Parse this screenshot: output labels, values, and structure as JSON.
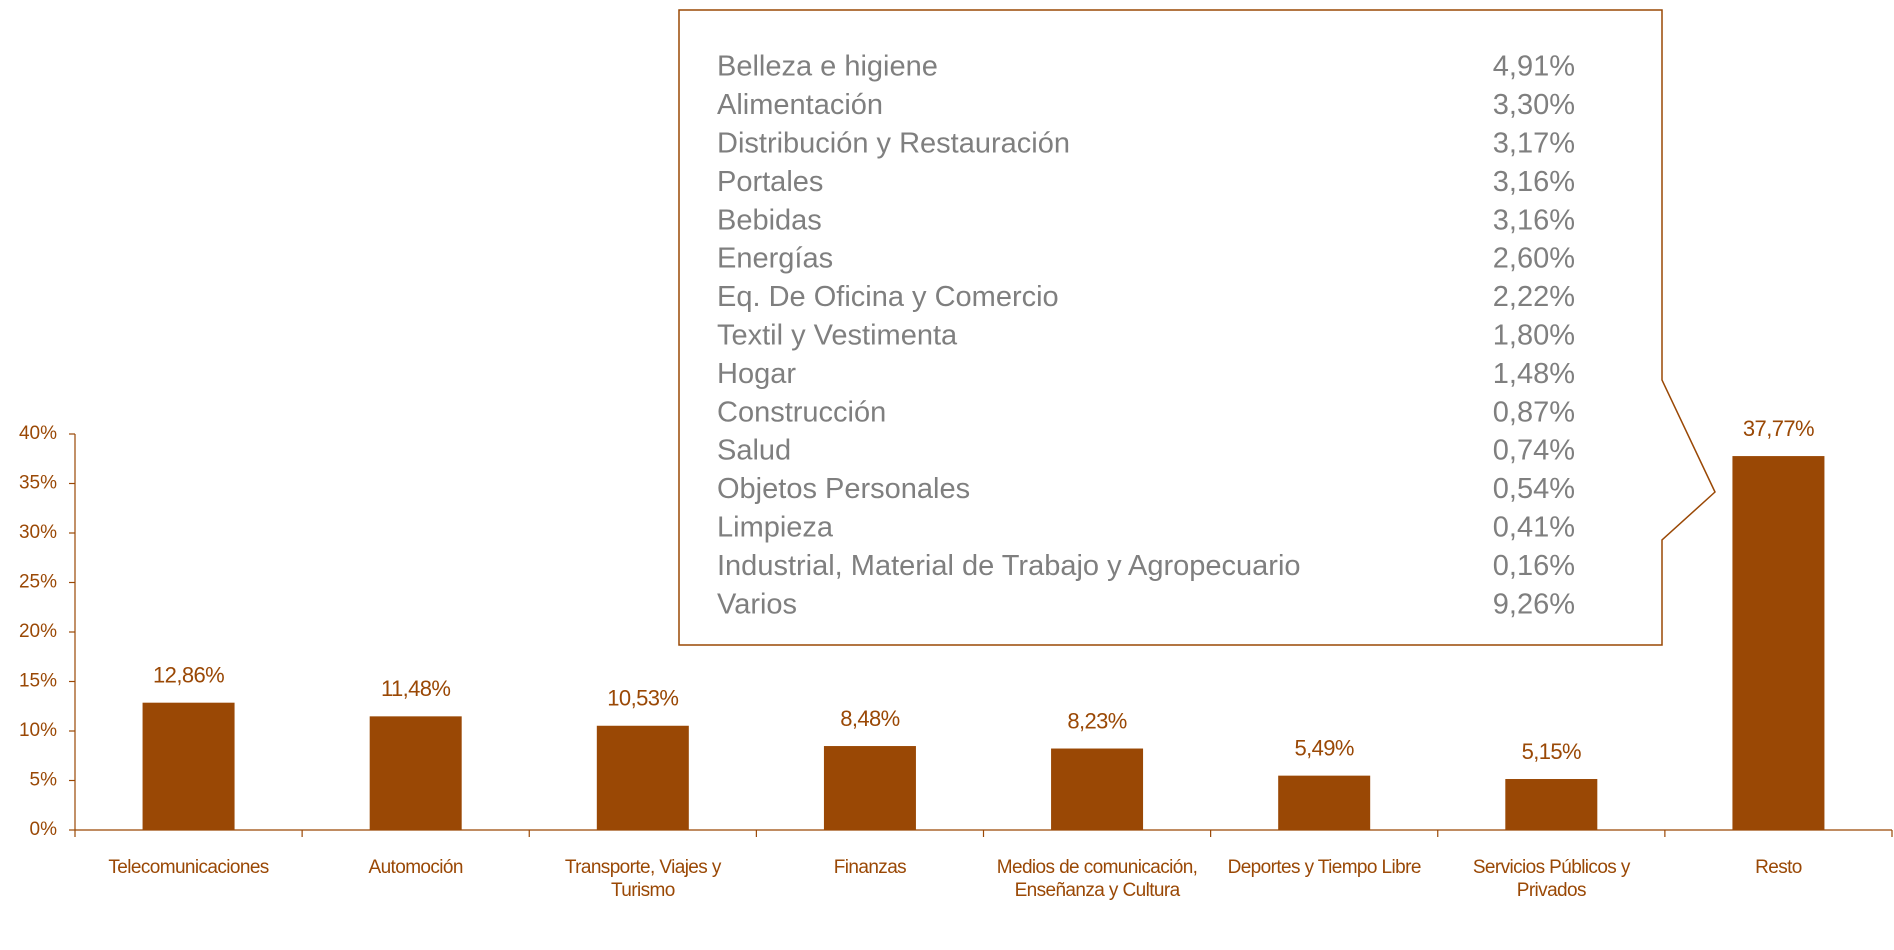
{
  "chart_data": {
    "type": "bar",
    "categories": [
      "Telecomunicaciones",
      "Automoción",
      "Transporte, Viajes y Turismo",
      "Finanzas",
      "Medios de comunicación, Enseñanza y Cultura",
      "Deportes y Tiempo Libre",
      "Servicios Públicos y Privados",
      "Resto"
    ],
    "values": [
      12.86,
      11.48,
      10.53,
      8.48,
      8.23,
      5.49,
      5.15,
      37.77
    ],
    "value_labels": [
      "12,86%",
      "11,48%",
      "10,53%",
      "8,48%",
      "8,23%",
      "5,49%",
      "5,15%",
      "37,77%"
    ],
    "color": "#9a4805",
    "ylim": [
      0,
      40
    ],
    "yticks": [
      {
        "value": 0,
        "label": "0%"
      },
      {
        "value": 5,
        "label": "5%"
      },
      {
        "value": 10,
        "label": "10%"
      },
      {
        "value": 15,
        "label": "15%"
      },
      {
        "value": 20,
        "label": "20%"
      },
      {
        "value": 25,
        "label": "25%"
      },
      {
        "value": 30,
        "label": "30%"
      },
      {
        "value": 35,
        "label": "35%"
      },
      {
        "value": 40,
        "label": "40%"
      }
    ],
    "grid": false,
    "callout": {
      "rows": [
        {
          "label": "Belleza e higiene",
          "value": "4,91%"
        },
        {
          "label": "Alimentación",
          "value": "3,30%"
        },
        {
          "label": "Distribución y Restauración",
          "value": "3,17%"
        },
        {
          "label": "Portales",
          "value": "3,16%"
        },
        {
          "label": "Bebidas",
          "value": "3,16%"
        },
        {
          "label": "Energías",
          "value": "2,60%"
        },
        {
          "label": "Eq. De Oficina y Comercio",
          "value": "2,22%"
        },
        {
          "label": "Textil y Vestimenta",
          "value": "1,80%"
        },
        {
          "label": "Hogar",
          "value": "1,48%"
        },
        {
          "label": "Construcción",
          "value": "0,87%"
        },
        {
          "label": "Salud",
          "value": "0,74%"
        },
        {
          "label": "Objetos Personales",
          "value": "0,54%"
        },
        {
          "label": "Limpieza",
          "value": "0,41%"
        },
        {
          "label": "Industrial, Material de Trabajo y Agropecuario",
          "value": "0,16%"
        },
        {
          "label": "Varios",
          "value": "9,26%"
        }
      ]
    }
  }
}
